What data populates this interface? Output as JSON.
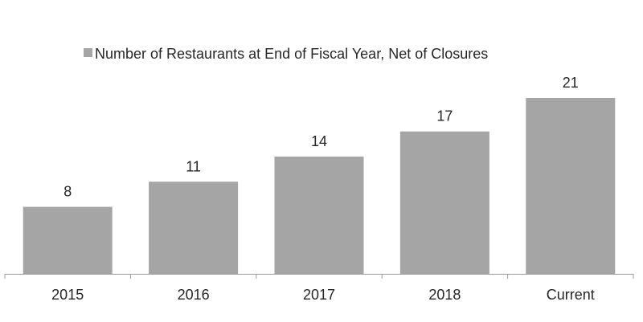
{
  "chart_data": {
    "type": "bar",
    "title": "",
    "xlabel": "",
    "ylabel": "",
    "categories": [
      "2015",
      "2016",
      "2017",
      "2018",
      "Current"
    ],
    "series": [
      {
        "name": "Number of Restaurants at End of Fiscal Year, Net of Closures",
        "values": [
          8,
          11,
          14,
          17,
          21
        ],
        "color": "#a5a5a5"
      }
    ],
    "data_labels": [
      "8",
      "11",
      "14",
      "17",
      "21"
    ],
    "ylim": [
      0,
      21
    ],
    "grid": false,
    "legend_position": "top-center",
    "axis_color": "#9a9a9a"
  }
}
